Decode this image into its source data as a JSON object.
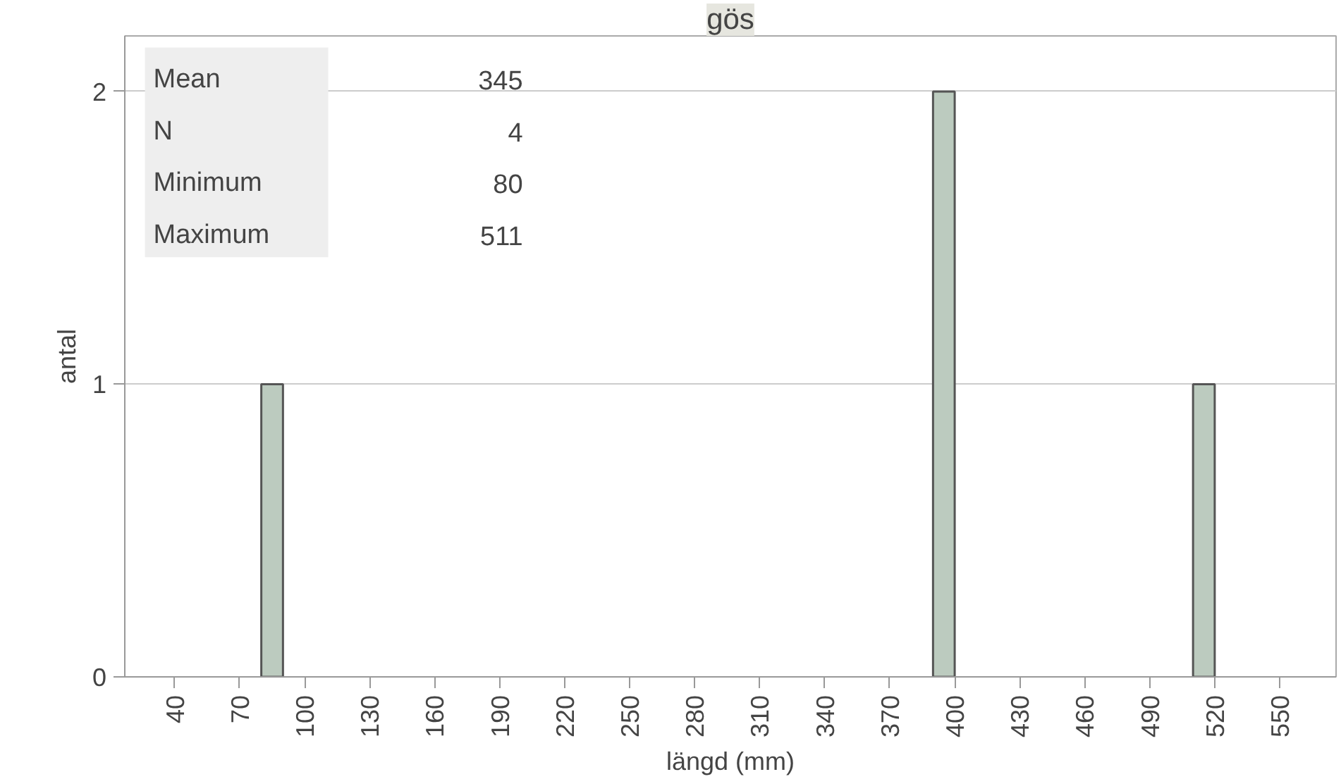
{
  "chart_data": {
    "type": "histogram",
    "title": "gös",
    "xlabel": "längd (mm)",
    "ylabel": "antal",
    "bins": [
      80,
      90,
      100,
      110,
      120,
      130,
      140,
      150,
      160,
      170,
      180,
      190,
      200,
      210,
      220,
      230,
      240,
      250,
      260,
      270,
      280,
      290,
      300,
      310,
      320,
      330,
      340,
      350,
      360,
      370,
      380,
      390,
      400,
      410,
      420,
      430,
      440,
      450,
      460,
      470,
      480,
      490,
      500,
      510,
      520
    ],
    "values": [
      1,
      0,
      0,
      0,
      0,
      0,
      0,
      0,
      0,
      0,
      0,
      0,
      0,
      0,
      0,
      0,
      0,
      0,
      0,
      0,
      0,
      0,
      0,
      0,
      0,
      0,
      0,
      0,
      0,
      0,
      0,
      2,
      0,
      0,
      0,
      0,
      0,
      0,
      0,
      0,
      0,
      0,
      0,
      1
    ],
    "color": "#bccbbf",
    "xlim": [
      17,
      576
    ],
    "xticks": [
      40,
      70,
      100,
      130,
      160,
      190,
      220,
      250,
      280,
      310,
      340,
      370,
      400,
      430,
      460,
      490,
      520,
      550
    ],
    "ylim": [
      0,
      2.19
    ],
    "yticks": [
      0,
      1,
      2
    ],
    "grid": "y",
    "annotations": [
      "Mean",
      "345",
      "N",
      "4",
      "Minimum",
      "80",
      "Maximum",
      "511"
    ]
  }
}
